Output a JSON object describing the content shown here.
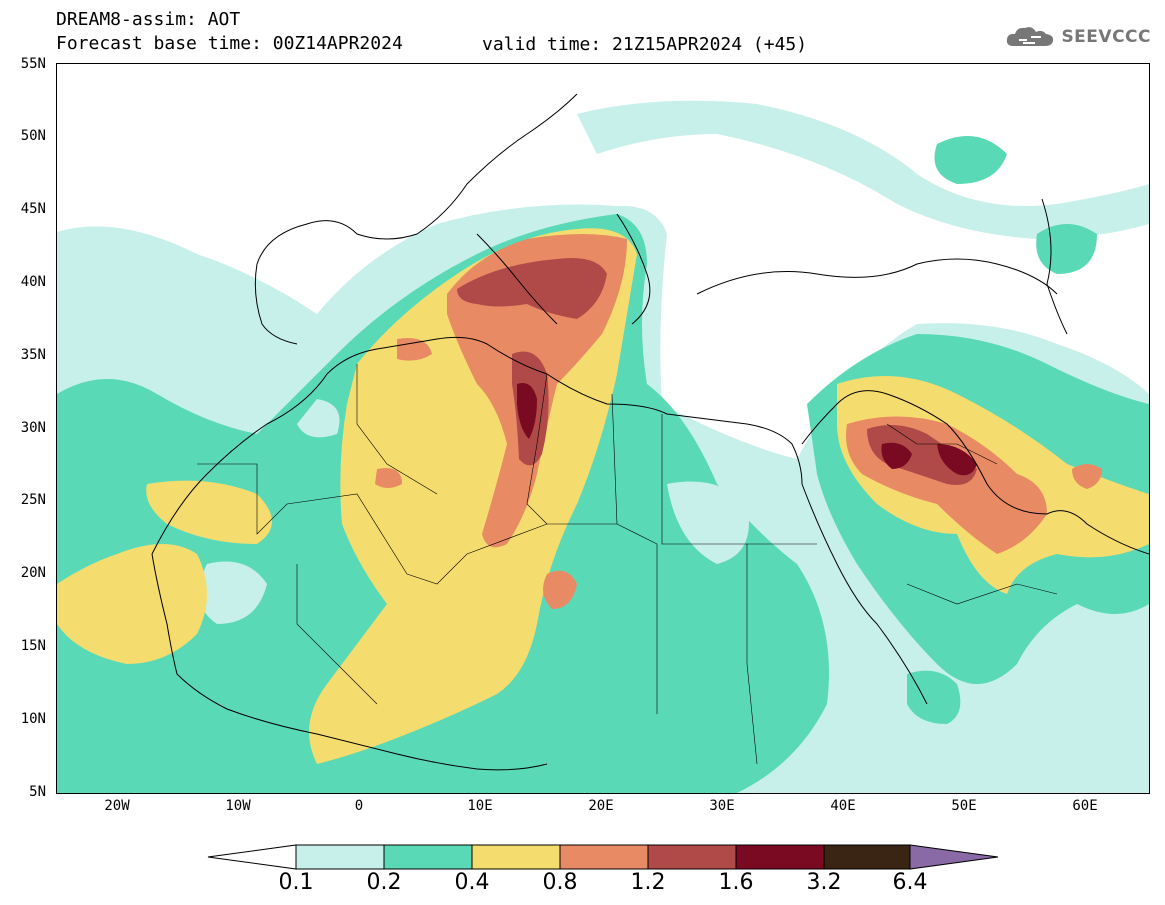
{
  "header": {
    "title": "DREAM8-assim: AOT",
    "base_time": "Forecast base time: 00Z14APR2024",
    "valid_time": "valid time: 21Z15APR2024 (+45)",
    "logo_text": "SEEVCCC"
  },
  "axes": {
    "lat_labels": [
      "55N",
      "50N",
      "45N",
      "40N",
      "35N",
      "30N",
      "25N",
      "20N",
      "15N",
      "10N",
      "5N"
    ],
    "lon_labels": [
      "20W",
      "10W",
      "0",
      "10E",
      "20E",
      "30E",
      "40E",
      "50E",
      "60E"
    ]
  },
  "colorbar": {
    "colors": [
      "#c7f0ea",
      "#5ad9b6",
      "#f5dc6e",
      "#e88a63",
      "#b04a48",
      "#7a0a22",
      "#3a2515",
      "#8a6aa6"
    ],
    "under_color": "#ffffff",
    "labels": [
      "0.1",
      "0.2",
      "0.4",
      "0.8",
      "1.2",
      "1.6",
      "3.2",
      "6.4"
    ]
  }
}
